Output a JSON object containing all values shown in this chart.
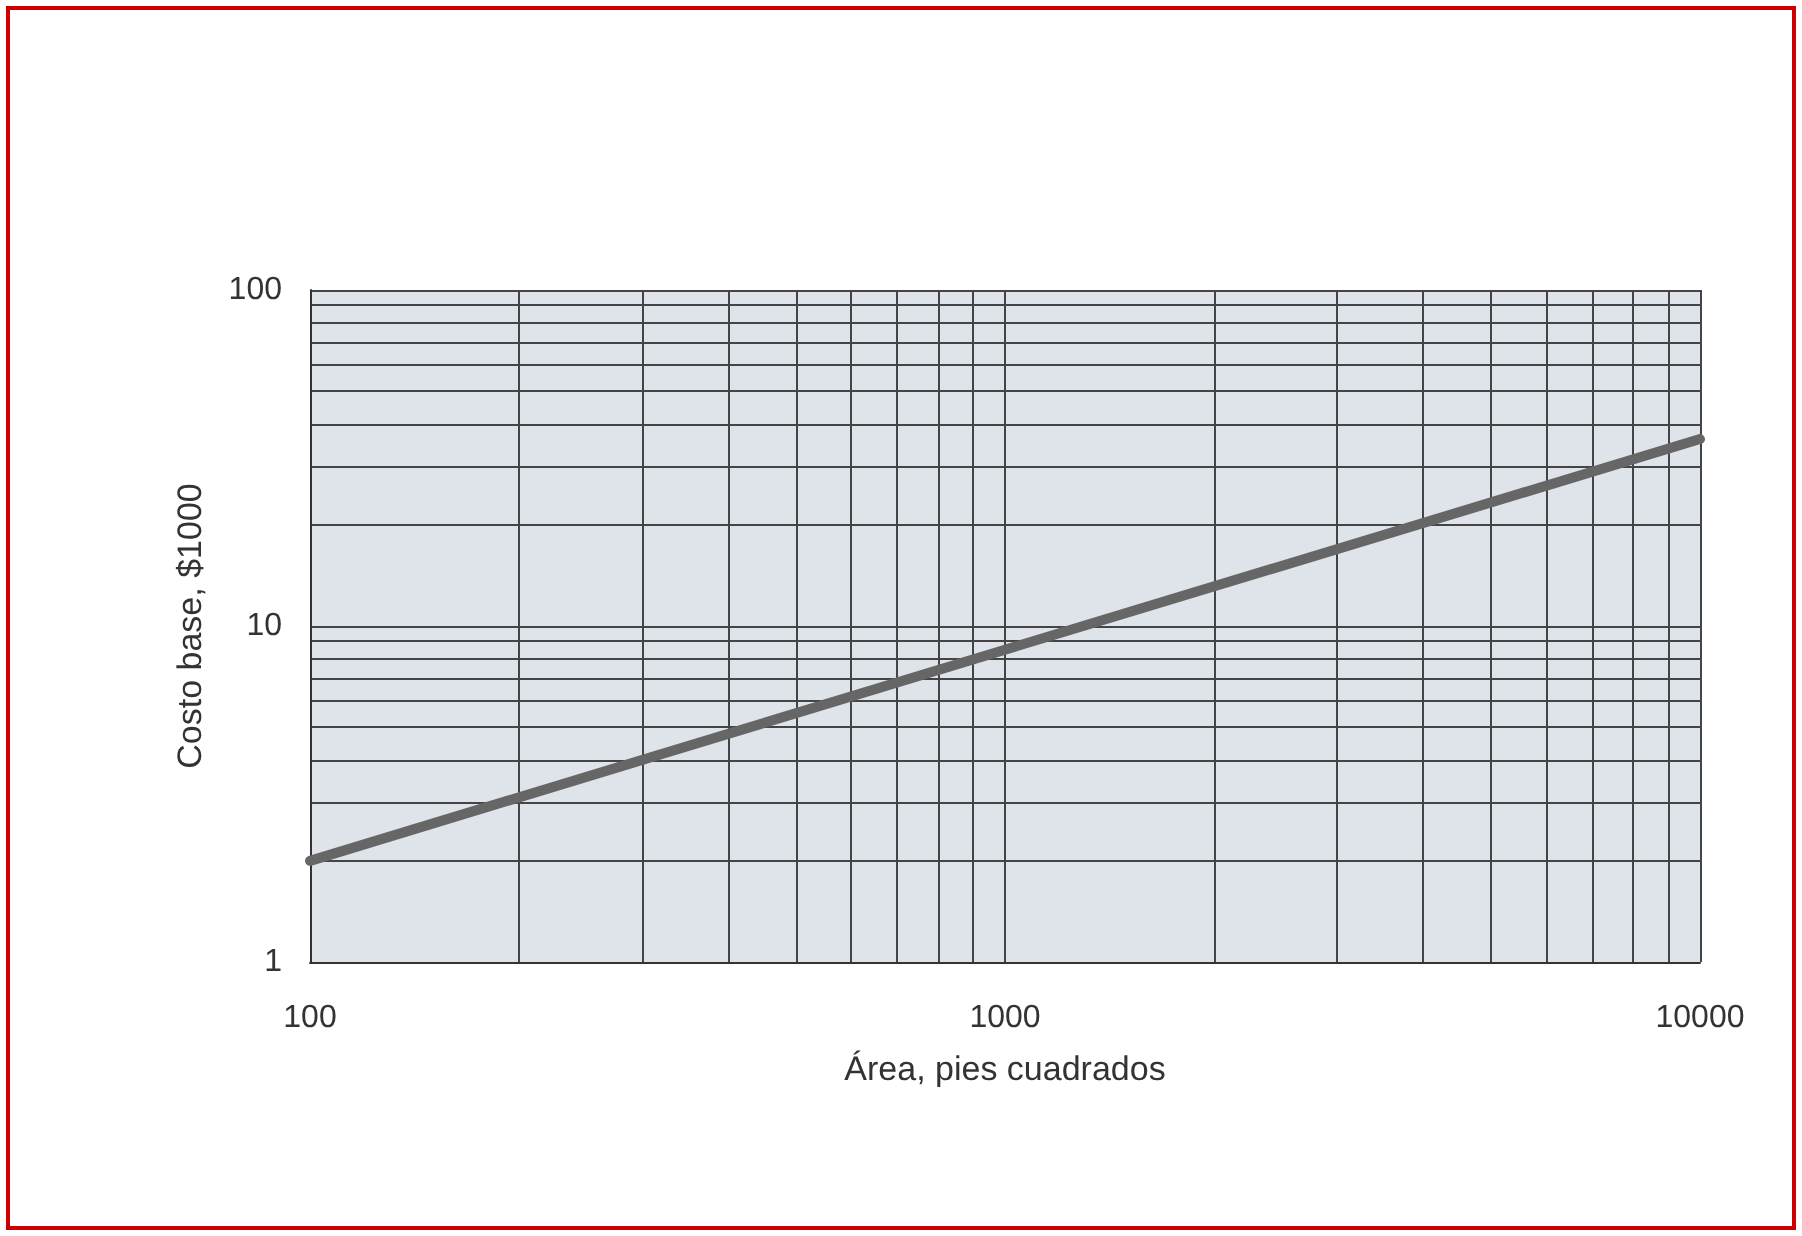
{
  "chart_data": {
    "type": "line",
    "xlabel": "Área, pies cuadrados",
    "ylabel": "Costo base, $1000",
    "x": [
      100,
      1000,
      10000
    ],
    "series": [
      {
        "color": "#666666",
        "values": [
          2,
          8.5,
          36
        ]
      }
    ],
    "log": "xy",
    "xlim": [
      100,
      10000
    ],
    "ylim": [
      1,
      100
    ],
    "xticks": [
      100,
      1000,
      10000
    ],
    "yticks": [
      1,
      10,
      100
    ],
    "grid": true
  }
}
